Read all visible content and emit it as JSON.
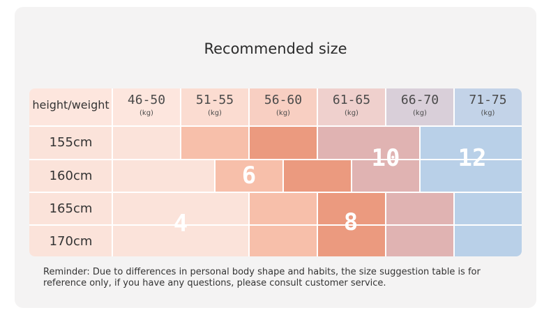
{
  "title": "Recommended size",
  "reminder": "Reminder: Due to differences in personal body shape and habits, the size suggestion table is for reference only, if you have any questions, please consult customer service.",
  "chart_data": {
    "type": "table",
    "corner_label": "height/weight",
    "columns": [
      {
        "range": "46-50",
        "unit": "(kg)"
      },
      {
        "range": "51-55",
        "unit": "(kg)"
      },
      {
        "range": "56-60",
        "unit": "(kg)"
      },
      {
        "range": "61-65",
        "unit": "(kg)"
      },
      {
        "range": "66-70",
        "unit": "(kg)"
      },
      {
        "range": "71-75",
        "unit": "(kg)"
      }
    ],
    "rows": [
      "155cm",
      "160cm",
      "165cm",
      "170cm"
    ],
    "size_labels": [
      "4",
      "6",
      "8",
      "10",
      "12"
    ],
    "colors": {
      "header": [
        "#fde6de",
        "#fbdcd1",
        "#f8cfc2",
        "#efd0cd",
        "#d9cfd9",
        "#c3d3e8"
      ],
      "size4": "#fbe3da",
      "size6": "#f7bfaa",
      "size8": "#eb9a7f",
      "size10": "#e0b3b2",
      "size12": "#b9d0e8",
      "rowlabel": "#fbe3da"
    }
  }
}
